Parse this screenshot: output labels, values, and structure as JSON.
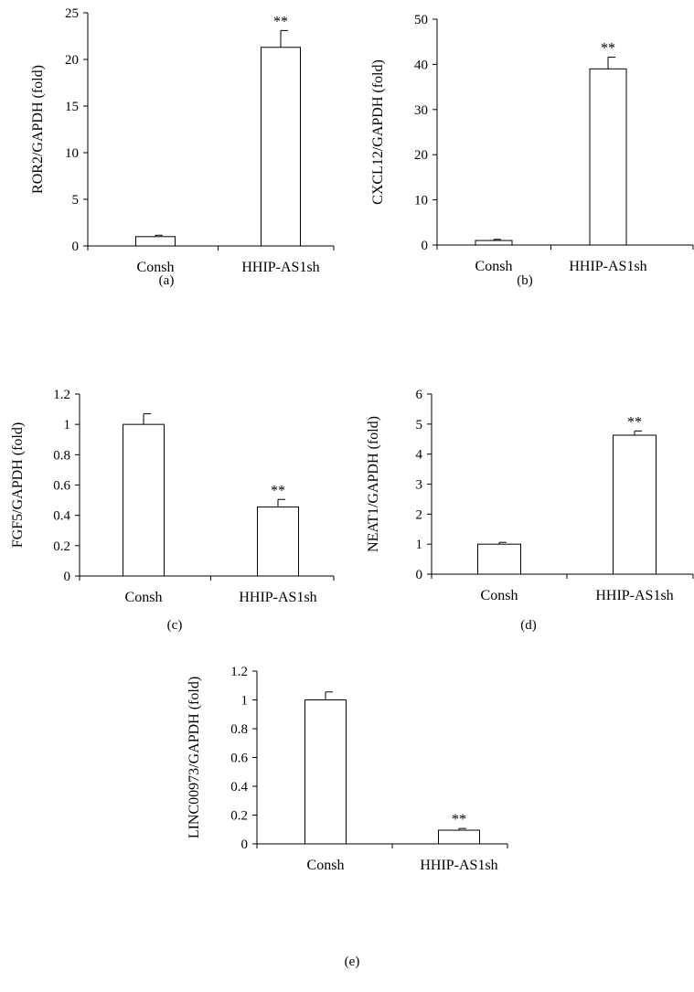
{
  "chart_data": [
    {
      "panel": "(a)",
      "type": "bar",
      "ylabel": "ROR2/GAPDH (fold)",
      "categories": [
        "Consh",
        "HHIP-AS1sh"
      ],
      "values": [
        1.0,
        21.3
      ],
      "errors": [
        0.15,
        1.8
      ],
      "annotations": [
        "",
        "**"
      ],
      "ylim": [
        0,
        25
      ],
      "yticks": [
        "0",
        "5",
        "10",
        "15",
        "20",
        "25"
      ]
    },
    {
      "panel": "(b)",
      "type": "bar",
      "ylabel": "CXCL12/GAPDH (fold)",
      "categories": [
        "Consh",
        "HHIP-AS1sh"
      ],
      "values": [
        1.0,
        39.0
      ],
      "errors": [
        0.25,
        2.6
      ],
      "annotations": [
        "",
        "**"
      ],
      "ylim": [
        0,
        50
      ],
      "yticks": [
        "0",
        "10",
        "20",
        "30",
        "40",
        "50"
      ]
    },
    {
      "panel": "(c)",
      "type": "bar",
      "ylabel": "FGF5/GAPDH (fold)",
      "categories": [
        "Consh",
        "HHIP-AS1sh"
      ],
      "values": [
        1.0,
        0.455
      ],
      "errors": [
        0.07,
        0.05
      ],
      "annotations": [
        "",
        "**"
      ],
      "ylim": [
        0,
        1.2
      ],
      "yticks": [
        "0",
        "0.2",
        "0.4",
        "0.6",
        "0.8",
        "1",
        "1.2"
      ]
    },
    {
      "panel": "(d)",
      "type": "bar",
      "ylabel": "NEAT1/GAPDH (fold)",
      "categories": [
        "Consh",
        "HHIP-AS1sh"
      ],
      "values": [
        1.0,
        4.63
      ],
      "errors": [
        0.06,
        0.14
      ],
      "annotations": [
        "",
        "**"
      ],
      "ylim": [
        0,
        6
      ],
      "yticks": [
        "0",
        "1",
        "2",
        "3",
        "4",
        "5",
        "6"
      ]
    },
    {
      "panel": "(e)",
      "type": "bar",
      "ylabel": "LINC00973/GAPDH (fold)",
      "categories": [
        "Consh",
        "HHIP-AS1sh"
      ],
      "values": [
        1.0,
        0.095
      ],
      "errors": [
        0.055,
        0.012
      ],
      "annotations": [
        "",
        "**"
      ],
      "ylim": [
        0,
        1.2
      ],
      "yticks": [
        "0",
        "0.2",
        "0.4",
        "0.6",
        "0.8",
        "1",
        "1.2"
      ]
    }
  ]
}
